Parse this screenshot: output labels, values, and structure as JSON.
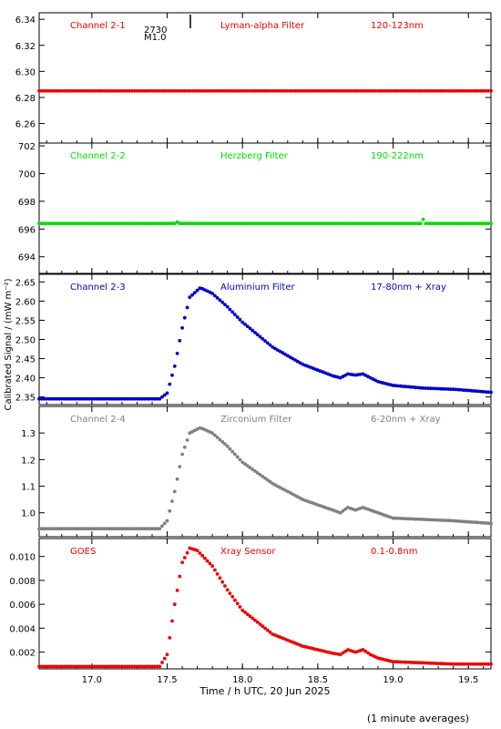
{
  "chart_data": {
    "type": "scatter",
    "xlabel": "Time / h UTC, 20 Jun 2025",
    "ylabel": "Calibrated Signal / (mW m⁻²)",
    "footnote": "(1 minute averages)",
    "xlim": [
      16.65,
      19.65
    ],
    "xticks": [
      17.0,
      17.5,
      18.0,
      18.5,
      19.0,
      19.5
    ],
    "xtick_labels": [
      "17.0",
      "17.5",
      "18.0",
      "18.5",
      "19.0",
      "19.5"
    ],
    "event_marker": {
      "x": 17.65,
      "label_top": "2730",
      "label_bottom": "M1.0"
    },
    "panels": [
      {
        "channel": "Channel 2-1",
        "filter": "Lyman-alpha Filter",
        "band": "120-123nm",
        "color": "#ee0000",
        "ylim": [
          6.245,
          6.345
        ],
        "yticks": [
          6.26,
          6.28,
          6.3,
          6.32,
          6.34
        ],
        "ytick_labels": [
          "6.26",
          "6.28",
          "6.30",
          "6.32",
          "6.34"
        ],
        "series": {
          "x": [
            16.65,
            19.65
          ],
          "y": [
            6.285,
            6.285
          ]
        }
      },
      {
        "channel": "Channel 2-2",
        "filter": "Herzberg Filter",
        "band": "190-222nm",
        "color": "#00dd00",
        "ylim": [
          692.8,
          702.2
        ],
        "yticks": [
          694,
          696,
          698,
          700,
          702
        ],
        "ytick_labels": [
          "694",
          "696",
          "698",
          "700",
          "702"
        ],
        "series": {
          "x": [
            16.65,
            17.55,
            17.56,
            17.57,
            19.19,
            19.2,
            19.21,
            19.65
          ],
          "y": [
            696.4,
            696.4,
            696.7,
            696.4,
            696.4,
            696.7,
            696.4,
            696.4
          ]
        }
      },
      {
        "channel": "Channel 2-3",
        "filter": "Aluminium Filter",
        "band": "17-80nm + Xray",
        "color": "#0000cc",
        "ylim": [
          2.33,
          2.67
        ],
        "yticks": [
          2.35,
          2.4,
          2.45,
          2.5,
          2.55,
          2.6,
          2.65
        ],
        "ytick_labels": [
          "2.35",
          "2.40",
          "2.45",
          "2.50",
          "2.55",
          "2.60",
          "2.65"
        ],
        "series": {
          "x": [
            16.65,
            17.45,
            17.5,
            17.55,
            17.6,
            17.65,
            17.72,
            17.8,
            17.9,
            18.0,
            18.2,
            18.4,
            18.6,
            18.65,
            18.7,
            18.75,
            18.8,
            18.85,
            18.9,
            19.0,
            19.2,
            19.4,
            19.65
          ],
          "y": [
            2.345,
            2.345,
            2.36,
            2.43,
            2.53,
            2.61,
            2.635,
            2.62,
            2.585,
            2.545,
            2.48,
            2.435,
            2.405,
            2.4,
            2.41,
            2.407,
            2.41,
            2.4,
            2.39,
            2.38,
            2.373,
            2.37,
            2.362
          ]
        }
      },
      {
        "channel": "Channel 2-4",
        "filter": "Zirconium Filter",
        "band": "6-20nm + Xray",
        "color": "#808080",
        "ylim": [
          0.91,
          1.4
        ],
        "yticks": [
          1.0,
          1.1,
          1.2,
          1.3
        ],
        "ytick_labels": [
          "1.0",
          "1.1",
          "1.2",
          "1.3"
        ],
        "series": {
          "x": [
            16.65,
            17.45,
            17.5,
            17.55,
            17.6,
            17.65,
            17.72,
            17.8,
            17.9,
            18.0,
            18.2,
            18.4,
            18.6,
            18.65,
            18.7,
            18.75,
            18.8,
            18.85,
            18.9,
            19.0,
            19.2,
            19.4,
            19.65
          ],
          "y": [
            0.94,
            0.94,
            0.97,
            1.08,
            1.22,
            1.3,
            1.32,
            1.3,
            1.25,
            1.19,
            1.11,
            1.05,
            1.01,
            1.0,
            1.02,
            1.01,
            1.02,
            1.01,
            1.0,
            0.98,
            0.975,
            0.97,
            0.96
          ]
        }
      },
      {
        "channel": "GOES",
        "filter": "Xray Sensor",
        "band": "0.1-0.8nm",
        "color": "#ee0000",
        "ylim": [
          0.0006,
          0.0115
        ],
        "yticks": [
          0.002,
          0.004,
          0.006,
          0.008,
          0.01
        ],
        "ytick_labels": [
          "0.002",
          "0.004",
          "0.006",
          "0.008",
          "0.010"
        ],
        "series": {
          "x": [
            16.65,
            17.45,
            17.5,
            17.55,
            17.6,
            17.65,
            17.7,
            17.8,
            17.9,
            18.0,
            18.2,
            18.4,
            18.6,
            18.65,
            18.7,
            18.75,
            18.8,
            18.85,
            18.9,
            19.0,
            19.2,
            19.4,
            19.65
          ],
          "y": [
            0.0008,
            0.0008,
            0.0018,
            0.006,
            0.0095,
            0.0107,
            0.0105,
            0.0092,
            0.0072,
            0.0055,
            0.0035,
            0.0025,
            0.0019,
            0.0018,
            0.0022,
            0.002,
            0.0022,
            0.0018,
            0.0015,
            0.0012,
            0.0011,
            0.001,
            0.001
          ]
        }
      }
    ]
  }
}
